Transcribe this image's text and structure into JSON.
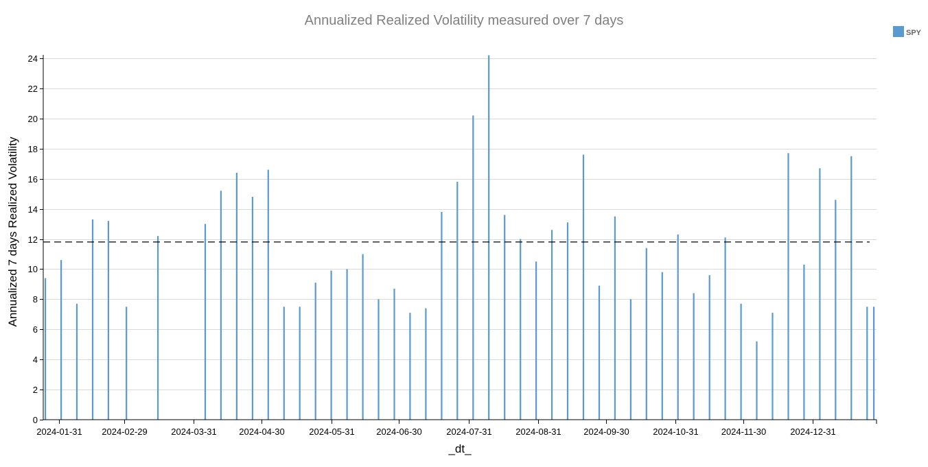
{
  "chart_data": {
    "type": "bar",
    "title": "Annualized Realized Volatility measured over 7 days",
    "xlabel": "_dt_",
    "ylabel": "Annualized 7 days Realized Volatility",
    "ylim": [
      0,
      24
    ],
    "yticks": [
      "0",
      "2",
      "4",
      "6",
      "8",
      "10",
      "12",
      "14",
      "16",
      "18",
      "20",
      "22",
      "24"
    ],
    "xlim": [
      "2024-01-25",
      "2025-01-27"
    ],
    "xticks": [
      "2024-01-31",
      "2024-02-29",
      "2024-03-31",
      "2024-04-30",
      "2024-05-31",
      "2024-06-30",
      "2024-07-31",
      "2024-08-31",
      "2024-09-30",
      "2024-10-31",
      "2024-11-30",
      "2024-12-31"
    ],
    "grid": true,
    "legend_position": "top-right",
    "series": [
      {
        "name": "SPY",
        "color": "#5a9bcf",
        "x": [
          "2024-01-25",
          "2024-02-01",
          "2024-02-08",
          "2024-02-15",
          "2024-02-22",
          "2024-03-01",
          "2024-03-15",
          "2024-04-05",
          "2024-04-12",
          "2024-04-19",
          "2024-04-26",
          "2024-05-03",
          "2024-05-10",
          "2024-05-17",
          "2024-05-24",
          "2024-05-31",
          "2024-06-07",
          "2024-06-14",
          "2024-06-21",
          "2024-06-28",
          "2024-07-05",
          "2024-07-12",
          "2024-07-19",
          "2024-07-26",
          "2024-08-02",
          "2024-08-09",
          "2024-08-16",
          "2024-08-23",
          "2024-08-30",
          "2024-09-06",
          "2024-09-13",
          "2024-09-20",
          "2024-09-27",
          "2024-10-04",
          "2024-10-11",
          "2024-10-18",
          "2024-10-25",
          "2024-11-01",
          "2024-11-08",
          "2024-11-15",
          "2024-11-22",
          "2024-11-29",
          "2024-12-06",
          "2024-12-13",
          "2024-12-20",
          "2024-12-27",
          "2025-01-03",
          "2025-01-10",
          "2025-01-17",
          "2025-01-24",
          "2025-01-27"
        ],
        "values": [
          9.4,
          10.6,
          7.7,
          13.3,
          13.2,
          7.5,
          12.2,
          13.0,
          15.2,
          16.4,
          14.8,
          16.6,
          7.5,
          7.5,
          9.1,
          9.9,
          10.0,
          11.0,
          8.0,
          8.7,
          7.1,
          7.4,
          13.8,
          15.8,
          20.2,
          24.2,
          13.6,
          12.0,
          10.5,
          12.6,
          13.1,
          17.6,
          8.9,
          13.5,
          8.0,
          11.4,
          9.8,
          12.3,
          8.4,
          9.6,
          12.1,
          7.7,
          5.2,
          7.1,
          17.7,
          10.3,
          16.7,
          14.6,
          17.5,
          7.5,
          7.5
        ]
      }
    ],
    "reference_line": {
      "y": 11.8,
      "style": "dashed",
      "color": "#000000"
    }
  }
}
